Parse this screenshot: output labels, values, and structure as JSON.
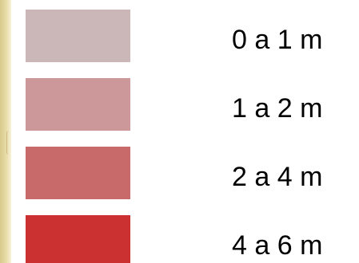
{
  "legend": {
    "items": [
      {
        "label": "0 a 1 m",
        "color": "#cbb6b8"
      },
      {
        "label": "1 a 2 m",
        "color": "#cc989a"
      },
      {
        "label": "2 a 4 m",
        "color": "#c96a6a"
      },
      {
        "label": "4 a 6 m",
        "color": "#cb3131"
      }
    ]
  }
}
